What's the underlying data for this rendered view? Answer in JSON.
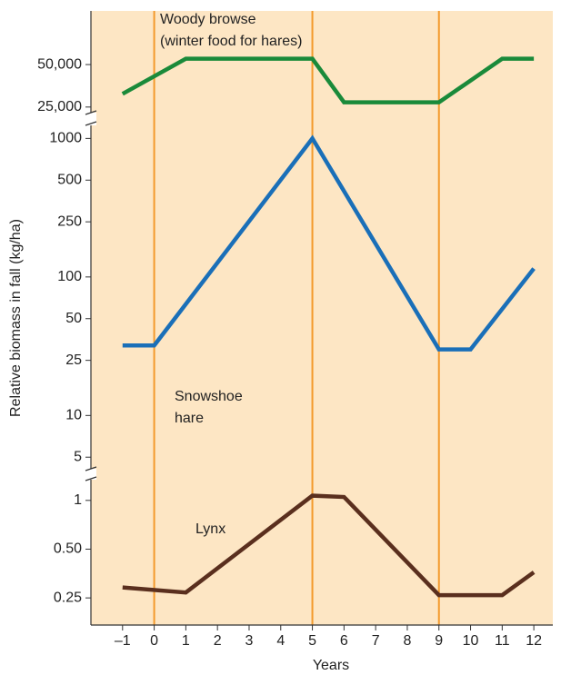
{
  "chart_data": {
    "type": "line",
    "ylabel": "Relative biomass in fall (kg/ha)",
    "xlabel": "Years",
    "xlim": [
      -2,
      12.6
    ],
    "xticks": [
      {
        "value": -1,
        "label": "–1"
      },
      0,
      1,
      2,
      3,
      4,
      5,
      6,
      7,
      8,
      9,
      10,
      11,
      12
    ],
    "vlines": [
      0,
      5,
      9
    ],
    "vline_color": "#f39a2c",
    "background": "#fde6c4",
    "panels": [
      {
        "annotations": [
          "Woody browse",
          "(winter food for hares)"
        ],
        "x": [
          -1,
          1,
          5,
          6,
          9,
          11,
          12
        ],
        "values": [
          31000,
          55000,
          55000,
          27000,
          27000,
          55000,
          55000
        ],
        "color": "#1a8a3a",
        "log": true,
        "ylim": [
          21500,
          120000
        ],
        "yticks": [
          {
            "value": 50000,
            "label": "50,000"
          },
          {
            "value": 25000,
            "label": "25,000"
          }
        ]
      },
      {
        "annotations": [
          "Snowshoe",
          "hare"
        ],
        "x": [
          -1,
          0,
          5,
          9,
          10,
          12
        ],
        "values": [
          32,
          32,
          1000,
          30,
          30,
          115
        ],
        "color": "#1a6fb8",
        "log": true,
        "ylim": [
          4,
          1300
        ],
        "yticks": [
          1000,
          500,
          250,
          100,
          50,
          25,
          10,
          5
        ]
      },
      {
        "annotations": [
          "Lynx"
        ],
        "x": [
          -1,
          1,
          5,
          6,
          9,
          11,
          12
        ],
        "values": [
          0.29,
          0.27,
          1.07,
          1.05,
          0.26,
          0.26,
          0.36
        ],
        "color": "#5a2f1e",
        "log": true,
        "ylim": [
          0.17,
          1.36
        ],
        "yticks": [
          1,
          {
            "value": 0.5,
            "label": "0.50"
          },
          0.25
        ]
      }
    ]
  }
}
